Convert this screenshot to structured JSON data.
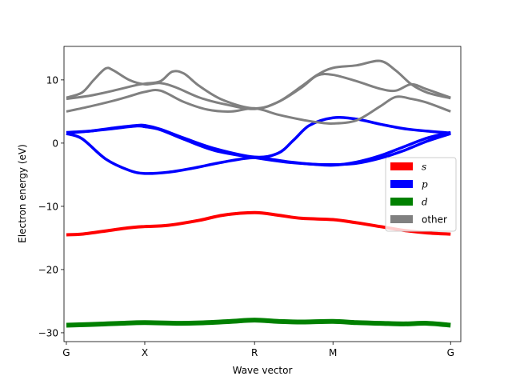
{
  "chart_data": {
    "type": "line",
    "title": "",
    "xlabel": "Wave vector",
    "ylabel": "Electron energy (eV)",
    "ylim": [
      -31.4,
      15.3
    ],
    "xlim": [
      -0.03,
      5.03
    ],
    "k_points": [
      0,
      1,
      2.4,
      3.4,
      4.9
    ],
    "k_labels": [
      "G",
      "X",
      "R",
      "M",
      "G"
    ],
    "y_ticks": [
      10,
      0,
      -10,
      -20,
      -30
    ],
    "y_tick_labels": [
      "10",
      "0",
      "−10",
      "−20",
      "−30"
    ],
    "legend": [
      {
        "label": "s",
        "color": "#ff0000",
        "italic": true
      },
      {
        "label": "p",
        "color": "#0000ff",
        "italic": true
      },
      {
        "label": "d",
        "color": "#008000",
        "italic": true
      },
      {
        "label": "other",
        "color": "#808080",
        "italic": false
      }
    ],
    "legend_position": "center-right",
    "bands": [
      {
        "name": "d-band",
        "orbital": "d",
        "color": "#008000",
        "width": 6,
        "x": [
          0,
          0.3,
          0.5,
          0.7,
          1.0,
          1.4,
          1.8,
          2.1,
          2.4,
          2.7,
          3.0,
          3.4,
          3.7,
          4.0,
          4.3,
          4.6,
          4.9
        ],
        "y": [
          -28.8,
          -28.7,
          -28.6,
          -28.5,
          -28.4,
          -28.5,
          -28.4,
          -28.2,
          -28.0,
          -28.2,
          -28.3,
          -28.2,
          -28.4,
          -28.5,
          -28.6,
          -28.5,
          -28.8
        ]
      },
      {
        "name": "s-band",
        "orbital": "s",
        "color": "#ff0000",
        "width": 4,
        "x": [
          0,
          0.2,
          0.5,
          0.8,
          1.0,
          1.3,
          1.7,
          2.0,
          2.4,
          2.7,
          3.0,
          3.4,
          3.7,
          4.0,
          4.3,
          4.6,
          4.9
        ],
        "y": [
          -14.5,
          -14.4,
          -13.9,
          -13.4,
          -13.2,
          -13.0,
          -12.2,
          -11.4,
          -11.0,
          -11.4,
          -11.9,
          -12.1,
          -12.6,
          -13.2,
          -13.8,
          -14.2,
          -14.4
        ]
      },
      {
        "name": "p-band-1",
        "orbital": "p",
        "color": "#0000ff",
        "width": 3.5,
        "x": [
          0,
          0.2,
          0.5,
          0.8,
          1.0,
          1.3,
          1.6,
          2.0,
          2.4,
          2.8,
          3.1,
          3.4,
          3.7,
          4.0,
          4.3,
          4.6,
          4.9
        ],
        "y": [
          1.5,
          0.7,
          -2.5,
          -4.3,
          -4.8,
          -4.6,
          -4.0,
          -3.0,
          -2.3,
          -2.9,
          -3.3,
          -3.4,
          -3.2,
          -2.4,
          -1.2,
          0.3,
          1.5
        ]
      },
      {
        "name": "p-band-2",
        "orbital": "p",
        "color": "#0000ff",
        "width": 3.5,
        "x": [
          0,
          0.3,
          0.6,
          0.9,
          1.0,
          1.2,
          1.5,
          1.9,
          2.4,
          2.7,
          2.9,
          3.1,
          3.4,
          3.7,
          4.0,
          4.3,
          4.6,
          4.9
        ],
        "y": [
          1.6,
          1.9,
          2.4,
          2.8,
          2.8,
          2.2,
          0.8,
          -0.9,
          -2.2,
          -1.6,
          0.5,
          2.8,
          4.0,
          3.8,
          3.0,
          2.3,
          1.9,
          1.6
        ]
      },
      {
        "name": "p-band-3",
        "orbital": "p",
        "color": "#0000ff",
        "width": 3.5,
        "x": [
          0,
          0.3,
          0.6,
          0.9,
          1.0,
          1.2,
          1.5,
          1.9,
          2.4,
          2.8,
          3.1,
          3.4,
          3.7,
          4.0,
          4.3,
          4.6,
          4.9
        ],
        "y": [
          1.7,
          1.9,
          2.3,
          2.7,
          2.6,
          2.1,
          0.6,
          -1.2,
          -2.3,
          -3.0,
          -3.3,
          -3.5,
          -3.0,
          -2.0,
          -0.6,
          0.8,
          1.7
        ]
      },
      {
        "name": "other-1",
        "orbital": "other",
        "color": "#808080",
        "width": 3,
        "x": [
          0,
          0.2,
          0.35,
          0.5,
          0.6,
          0.8,
          1.0,
          1.2,
          1.4,
          1.7,
          2.0,
          2.4,
          2.7,
          3.0,
          3.2,
          3.4,
          3.7,
          4.0,
          4.2,
          4.4,
          4.6,
          4.9
        ],
        "y": [
          7.2,
          8.0,
          10.0,
          11.8,
          11.5,
          10.0,
          9.3,
          9.5,
          8.8,
          7.2,
          6.2,
          5.4,
          6.5,
          9.0,
          10.8,
          11.9,
          12.3,
          13.0,
          11.5,
          9.3,
          8.0,
          7.1
        ]
      },
      {
        "name": "other-2",
        "orbital": "other",
        "color": "#808080",
        "width": 3,
        "x": [
          0,
          0.3,
          0.6,
          0.9,
          1.0,
          1.2,
          1.35,
          1.5,
          1.7,
          2.0,
          2.4,
          2.7,
          3.0,
          3.2,
          3.4,
          3.7,
          4.0,
          4.2,
          4.4,
          4.6,
          4.9
        ],
        "y": [
          7.0,
          7.5,
          8.3,
          9.2,
          9.4,
          9.8,
          11.3,
          11.0,
          9.0,
          6.8,
          5.5,
          6.5,
          8.8,
          10.7,
          10.8,
          9.8,
          8.6,
          8.3,
          9.3,
          8.5,
          7.2
        ]
      },
      {
        "name": "other-3",
        "orbital": "other",
        "color": "#808080",
        "width": 3,
        "x": [
          0,
          0.3,
          0.6,
          0.8,
          1.0,
          1.2,
          1.5,
          1.8,
          2.1,
          2.4,
          2.7,
          3.0,
          3.2,
          3.4,
          3.7,
          4.0,
          4.2,
          4.4,
          4.6,
          4.9
        ],
        "y": [
          5.0,
          5.8,
          6.7,
          7.4,
          8.1,
          8.3,
          6.5,
          5.3,
          5.0,
          5.5,
          4.5,
          3.7,
          3.3,
          3.1,
          3.6,
          5.8,
          7.3,
          7.0,
          6.4,
          5.0
        ]
      }
    ]
  }
}
